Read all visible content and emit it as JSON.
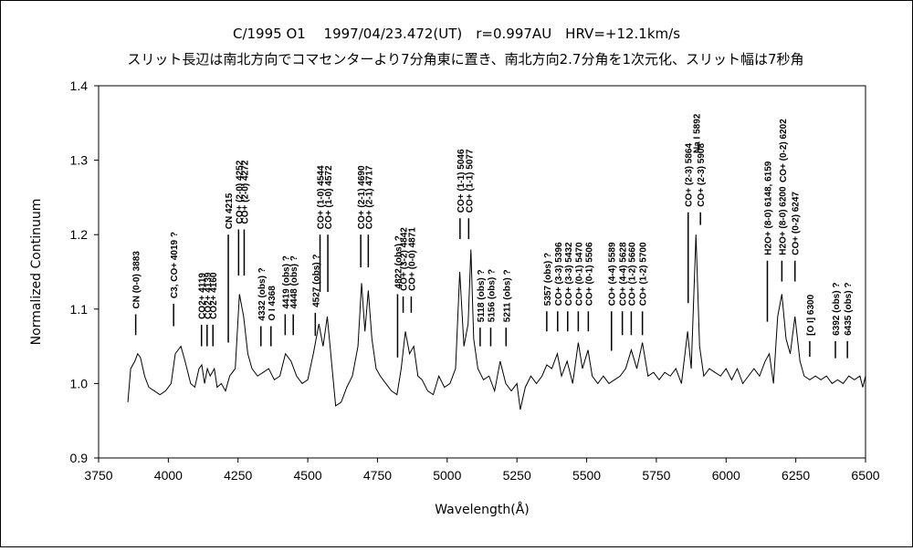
{
  "chart_data": {
    "type": "line",
    "title": "C/1995 O1　 1997/04/23.472(UT)　r=0.997AU　HRV=+12.1km/s",
    "subtitle": "スリット長辺は南北方向でコマセンターより7分角東に置き、南北方向2.7分角を1次元化、スリット幅は7秒角",
    "x_label": "Wavelength(Å)",
    "y_label": "Normalized Continuum",
    "color": "#000000",
    "xlim": [
      3750,
      6500
    ],
    "ylim": [
      0.9,
      1.4
    ],
    "xticks": [
      3750,
      4000,
      4250,
      4500,
      4750,
      5000,
      5250,
      5500,
      5750,
      6000,
      6250,
      6500
    ],
    "yticks": [
      0.9,
      {
        "value": 1,
        "label": "1.0"
      },
      1.1,
      1.2,
      1.3,
      1.4
    ],
    "x": [
      3855,
      3865,
      3880,
      3890,
      3900,
      3915,
      3930,
      3950,
      3970,
      3990,
      4010,
      4025,
      4045,
      4060,
      4080,
      4095,
      4110,
      4120,
      4130,
      4140,
      4150,
      4165,
      4175,
      4190,
      4205,
      4220,
      4240,
      4255,
      4270,
      4285,
      4300,
      4320,
      4340,
      4360,
      4380,
      4400,
      4420,
      4440,
      4460,
      4480,
      4500,
      4520,
      4540,
      4555,
      4570,
      4585,
      4600,
      4620,
      4640,
      4660,
      4680,
      4693,
      4705,
      4717,
      4730,
      4745,
      4760,
      4780,
      4800,
      4820,
      4835,
      4850,
      4865,
      4880,
      4895,
      4910,
      4930,
      4950,
      4970,
      4990,
      5010,
      5030,
      5045,
      5060,
      5075,
      5085,
      5095,
      5110,
      5130,
      5150,
      5170,
      5190,
      5210,
      5230,
      5250,
      5262,
      5280,
      5300,
      5320,
      5340,
      5357,
      5375,
      5395,
      5410,
      5430,
      5450,
      5470,
      5485,
      5505,
      5520,
      5540,
      5560,
      5580,
      5600,
      5620,
      5640,
      5660,
      5680,
      5700,
      5720,
      5740,
      5760,
      5780,
      5800,
      5820,
      5840,
      5862,
      5875,
      5892,
      5905,
      5920,
      5940,
      5960,
      5980,
      6000,
      6020,
      6040,
      6060,
      6080,
      6100,
      6120,
      6140,
      6155,
      6170,
      6185,
      6200,
      6215,
      6230,
      6247,
      6265,
      6280,
      6300,
      6320,
      6340,
      6360,
      6380,
      6400,
      6420,
      6440,
      6460,
      6480,
      6490,
      6500
    ],
    "values": [
      0.975,
      1.02,
      1.03,
      1.04,
      1.035,
      1.01,
      0.995,
      0.99,
      0.985,
      0.99,
      1.0,
      1.04,
      1.05,
      1.03,
      1.0,
      0.995,
      1.02,
      1.025,
      1.0,
      1.02,
      1.01,
      1.02,
      0.995,
      1.0,
      0.99,
      1.01,
      1.02,
      1.12,
      1.09,
      1.04,
      1.02,
      1.01,
      1.015,
      1.02,
      1.005,
      1.01,
      1.04,
      1.03,
      1.01,
      1.0,
      1.005,
      1.04,
      1.08,
      1.05,
      1.09,
      1.03,
      0.97,
      0.975,
      0.995,
      1.01,
      1.05,
      1.135,
      1.07,
      1.125,
      1.06,
      1.02,
      1.01,
      1.0,
      0.99,
      0.985,
      1.02,
      1.07,
      1.04,
      1.05,
      1.01,
      1.005,
      0.99,
      0.985,
      1.01,
      0.995,
      1.0,
      1.02,
      1.15,
      1.05,
      1.08,
      1.18,
      1.06,
      1.02,
      1.005,
      1.01,
      0.99,
      1.03,
      1.0,
      0.99,
      1.0,
      0.965,
      0.995,
      1.01,
      1.0,
      1.01,
      1.025,
      1.02,
      1.04,
      1.01,
      1.03,
      1.0,
      1.055,
      1.02,
      1.045,
      1.01,
      1.0,
      1.01,
      1.0,
      1.005,
      1.01,
      1.02,
      1.045,
      1.02,
      1.055,
      1.01,
      1.015,
      1.005,
      1.015,
      1.01,
      1.02,
      1.0,
      1.07,
      1.02,
      1.2,
      1.05,
      1.01,
      1.02,
      1.015,
      1.01,
      1.02,
      1.005,
      1.02,
      1.0,
      1.01,
      1.02,
      1.01,
      1.03,
      1.04,
      1.0,
      1.09,
      1.12,
      1.06,
      1.04,
      1.09,
      1.03,
      1.01,
      1.005,
      1.01,
      1.005,
      1.01,
      1.0,
      1.005,
      1.0,
      1.01,
      1.005,
      1.01,
      0.995,
      1.01
    ],
    "annotations": [
      {
        "text": "CN (0-0) 3883",
        "x": 3883,
        "y": [
          1.065,
          1.093
        ]
      },
      {
        "text": "C3, CO+ 4019 ?",
        "x": 4019,
        "y": [
          1.077,
          1.107
        ]
      },
      {
        "text": "CO2+ 4119",
        "x": 4119,
        "y": [
          1.05,
          1.079
        ]
      },
      {
        "text": "CO2+ 4139",
        "x": 4139,
        "y": [
          1.05,
          1.079
        ]
      },
      {
        "text": "CO2+ 4160",
        "x": 4160,
        "y": [
          1.05,
          1.079
        ]
      },
      {
        "text": "CN 4215",
        "x": 4215,
        "y": [
          1.055,
          1.2
        ]
      },
      {
        "text": "CO+ (2-0) 4252",
        "x": 4252,
        "y": [
          1.145,
          1.207
        ]
      },
      {
        "text": "CO+ (2-0) 4272",
        "x": 4272,
        "y": [
          1.145,
          1.207
        ]
      },
      {
        "text": "4332 (obs) ?",
        "x": 4332,
        "y": [
          1.05,
          1.077
        ]
      },
      {
        "text": "O I 4368",
        "x": 4368,
        "y": [
          1.05,
          1.077
        ]
      },
      {
        "text": "4419 (obs) ?",
        "x": 4419,
        "y": [
          1.065,
          1.093
        ]
      },
      {
        "text": "4448 (obs) ?",
        "x": 4448,
        "y": [
          1.065,
          1.093
        ]
      },
      {
        "text": "4527 (obs) ?",
        "x": 4527,
        "y": [
          1.064,
          1.095
        ]
      },
      {
        "text": "CO+ (1-0) 4544",
        "x": 4544,
        "y": [
          1.123,
          1.2
        ]
      },
      {
        "text": "CO+ (1-0) 4572",
        "x": 4572,
        "y": [
          1.123,
          1.2
        ]
      },
      {
        "text": "CO+ (2-1) 4690",
        "x": 4690,
        "y": [
          1.156,
          1.2
        ]
      },
      {
        "text": "CO+ (2-1) 4717",
        "x": 4717,
        "y": [
          1.156,
          1.2
        ]
      },
      {
        "text": "4822 (obs) ?",
        "x": 4822,
        "y": [
          1.035,
          1.12
        ]
      },
      {
        "text": "CO+ (3-2) 4842",
        "x": 4842,
        "y": [
          1.095,
          1.117
        ]
      },
      {
        "text": "CO+ (0-0) 4871",
        "x": 4871,
        "y": [
          1.095,
          1.117
        ]
      },
      {
        "text": "CO+ (1-1) 5046",
        "x": 5046,
        "y": [
          1.194,
          1.222
        ]
      },
      {
        "text": "CO+ (1-1) 5077",
        "x": 5077,
        "y": [
          1.194,
          1.222
        ]
      },
      {
        "text": "5118 (obs) ?",
        "x": 5118,
        "y": [
          1.05,
          1.075
        ]
      },
      {
        "text": "5156 (obs) ?",
        "x": 5156,
        "y": [
          1.05,
          1.075
        ]
      },
      {
        "text": "5211 (obs) ?",
        "x": 5211,
        "y": [
          1.05,
          1.075
        ]
      },
      {
        "text": "5357 (obs) ?",
        "x": 5357,
        "y": [
          1.07,
          1.097
        ]
      },
      {
        "text": "CO+ (3-3) 5396",
        "x": 5396,
        "y": [
          1.07,
          1.097
        ]
      },
      {
        "text": "CO+ (3-3) 5432",
        "x": 5432,
        "y": [
          1.07,
          1.097
        ]
      },
      {
        "text": "CO+ (0-1) 5470",
        "x": 5470,
        "y": [
          1.07,
          1.097
        ]
      },
      {
        "text": "CO+ (0-1) 5506",
        "x": 5506,
        "y": [
          1.07,
          1.097
        ]
      },
      {
        "text": "CO+ (4-4) 5589",
        "x": 5589,
        "y": [
          1.044,
          1.097
        ]
      },
      {
        "text": "CO+ (4-4) 5628",
        "x": 5628,
        "y": [
          1.065,
          1.097
        ]
      },
      {
        "text": "CO+ (1-2) 5660",
        "x": 5660,
        "y": [
          1.065,
          1.097
        ]
      },
      {
        "text": "CO+ (1-2) 5700",
        "x": 5700,
        "y": [
          1.065,
          1.097
        ]
      },
      {
        "text": "CO+ (2-3) 5864",
        "x": 5864,
        "y": [
          1.108,
          1.23
        ]
      },
      {
        "text": "CO+ (2-3) 5908",
        "x": 5908,
        "y": [
          1.213,
          1.23
        ]
      },
      {
        "text": "Na I 5892",
        "x": 5892
      },
      {
        "text": "H2O+ (8-0) 6148, 6159",
        "x": 6148,
        "y": [
          1.083,
          1.165
        ]
      },
      {
        "text": "H2O+ (8-0) 6200",
        "x": 6200,
        "y": [
          1.137,
          1.165
        ]
      },
      {
        "text": "CO+ (0-2) 6202",
        "x": 6202
      },
      {
        "text": "CO+ (0-2) 6247",
        "x": 6247,
        "y": [
          1.137,
          1.165
        ]
      },
      {
        "text": "[O I] 6300",
        "x": 6300,
        "y": [
          1.036,
          1.057
        ]
      },
      {
        "text": "6392 (obs) ?",
        "x": 6392,
        "y": [
          1.034,
          1.057
        ]
      },
      {
        "text": "6435 (obs) ?",
        "x": 6435,
        "y": [
          1.034,
          1.057
        ]
      }
    ]
  }
}
